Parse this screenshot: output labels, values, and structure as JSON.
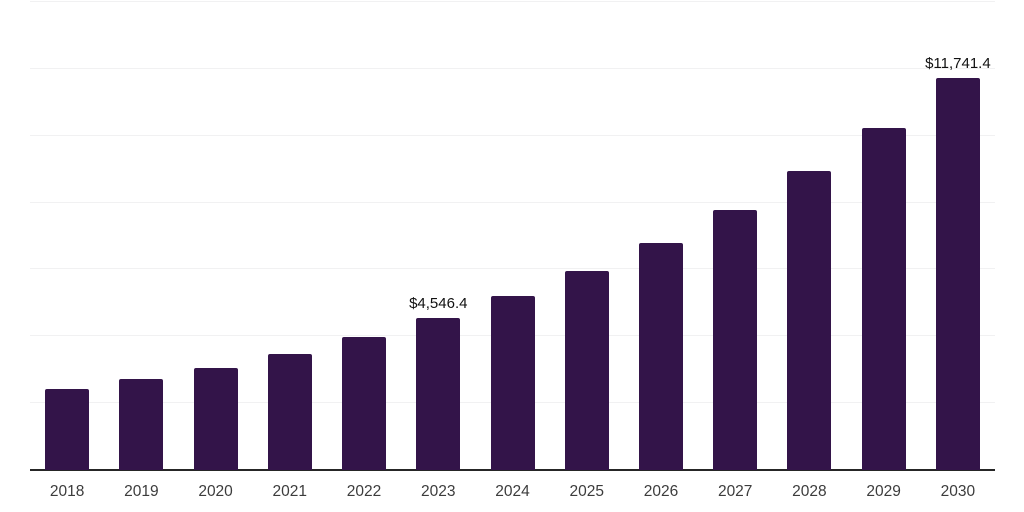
{
  "chart_data": {
    "type": "bar",
    "title": "",
    "xlabel": "",
    "ylabel": "",
    "categories": [
      "2018",
      "2019",
      "2020",
      "2021",
      "2022",
      "2023",
      "2024",
      "2025",
      "2026",
      "2027",
      "2028",
      "2029",
      "2030"
    ],
    "values": [
      2420,
      2720,
      3050,
      3470,
      3980,
      4546.4,
      5200,
      5950,
      6800,
      7770,
      8930,
      10240,
      11741.4
    ],
    "data_labels": [
      {
        "category": "2023",
        "text": "$4,546.4"
      },
      {
        "category": "2030",
        "text": "$11,741.4"
      }
    ],
    "ylim": [
      0,
      14000
    ],
    "gridline_step": 2000,
    "grid": "horizontal",
    "legend_position": "none",
    "y_axis_labels_visible": false,
    "colors": {
      "bar": "#331449",
      "axis": "#262626",
      "gridline": "#f1f1f2",
      "tick_label": "#3c3c3c",
      "value_label": "#111111",
      "background": "#ffffff"
    }
  }
}
